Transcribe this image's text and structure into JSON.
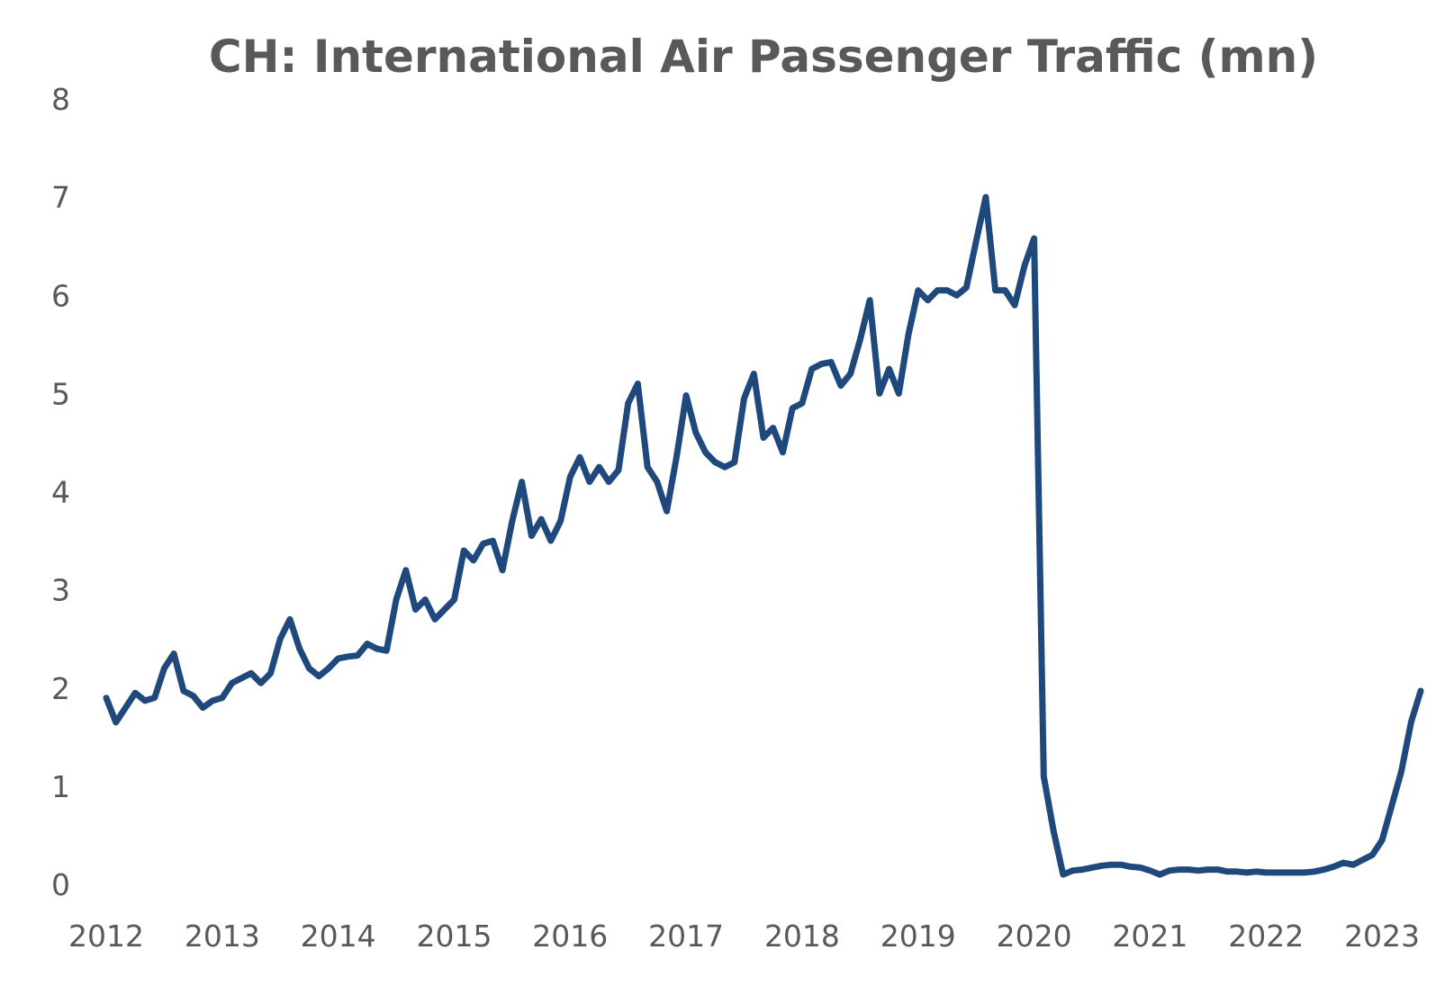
{
  "chart_data": {
    "type": "line",
    "title": "CH: International Air Passenger Traffic (mn)",
    "xlabel": "",
    "ylabel": "",
    "xlim": [
      "2012-01",
      "2023-05"
    ],
    "ylim": [
      0,
      8
    ],
    "y_ticks": [
      "0",
      "1",
      "2",
      "3",
      "4",
      "5",
      "6",
      "7",
      "8"
    ],
    "x_ticks": [
      "2012",
      "2013",
      "2014",
      "2015",
      "2016",
      "2017",
      "2018",
      "2019",
      "2020",
      "2021",
      "2022",
      "2023"
    ],
    "grid": false,
    "legend": "none",
    "line_color": "#1f497d",
    "series": [
      {
        "values": [
          [
            "2012-01",
            1.9
          ],
          [
            "2012-02",
            1.65
          ],
          [
            "2012-03",
            1.8
          ],
          [
            "2012-04",
            1.95
          ],
          [
            "2012-05",
            1.87
          ],
          [
            "2012-06",
            1.9
          ],
          [
            "2012-07",
            2.2
          ],
          [
            "2012-08",
            2.35
          ],
          [
            "2012-09",
            1.97
          ],
          [
            "2012-10",
            1.92
          ],
          [
            "2012-11",
            1.8
          ],
          [
            "2012-12",
            1.87
          ],
          [
            "2013-01",
            1.9
          ],
          [
            "2013-02",
            2.05
          ],
          [
            "2013-03",
            2.1
          ],
          [
            "2013-04",
            2.15
          ],
          [
            "2013-05",
            2.05
          ],
          [
            "2013-06",
            2.15
          ],
          [
            "2013-07",
            2.5
          ],
          [
            "2013-08",
            2.7
          ],
          [
            "2013-09",
            2.4
          ],
          [
            "2013-10",
            2.2
          ],
          [
            "2013-11",
            2.12
          ],
          [
            "2013-12",
            2.2
          ],
          [
            "2014-01",
            2.3
          ],
          [
            "2014-02",
            2.32
          ],
          [
            "2014-03",
            2.33
          ],
          [
            "2014-04",
            2.45
          ],
          [
            "2014-05",
            2.4
          ],
          [
            "2014-06",
            2.38
          ],
          [
            "2014-07",
            2.9
          ],
          [
            "2014-08",
            3.2
          ],
          [
            "2014-09",
            2.8
          ],
          [
            "2014-10",
            2.9
          ],
          [
            "2014-11",
            2.7
          ],
          [
            "2014-12",
            2.8
          ],
          [
            "2015-01",
            2.9
          ],
          [
            "2015-02",
            3.4
          ],
          [
            "2015-03",
            3.3
          ],
          [
            "2015-04",
            3.47
          ],
          [
            "2015-05",
            3.5
          ],
          [
            "2015-06",
            3.2
          ],
          [
            "2015-07",
            3.7
          ],
          [
            "2015-08",
            4.1
          ],
          [
            "2015-09",
            3.55
          ],
          [
            "2015-10",
            3.72
          ],
          [
            "2015-11",
            3.5
          ],
          [
            "2015-12",
            3.7
          ],
          [
            "2016-01",
            4.15
          ],
          [
            "2016-02",
            4.35
          ],
          [
            "2016-03",
            4.1
          ],
          [
            "2016-04",
            4.25
          ],
          [
            "2016-05",
            4.1
          ],
          [
            "2016-06",
            4.22
          ],
          [
            "2016-07",
            4.9
          ],
          [
            "2016-08",
            5.1
          ],
          [
            "2016-09",
            4.25
          ],
          [
            "2016-10",
            4.1
          ],
          [
            "2016-11",
            3.8
          ],
          [
            "2016-12",
            4.35
          ],
          [
            "2017-01",
            4.98
          ],
          [
            "2017-02",
            4.6
          ],
          [
            "2017-03",
            4.4
          ],
          [
            "2017-04",
            4.3
          ],
          [
            "2017-05",
            4.25
          ],
          [
            "2017-06",
            4.3
          ],
          [
            "2017-07",
            4.95
          ],
          [
            "2017-08",
            5.2
          ],
          [
            "2017-09",
            4.55
          ],
          [
            "2017-10",
            4.65
          ],
          [
            "2017-11",
            4.4
          ],
          [
            "2017-12",
            4.85
          ],
          [
            "2018-01",
            4.9
          ],
          [
            "2018-02",
            5.25
          ],
          [
            "2018-03",
            5.3
          ],
          [
            "2018-04",
            5.32
          ],
          [
            "2018-05",
            5.08
          ],
          [
            "2018-06",
            5.2
          ],
          [
            "2018-07",
            5.55
          ],
          [
            "2018-08",
            5.95
          ],
          [
            "2018-09",
            5.0
          ],
          [
            "2018-10",
            5.25
          ],
          [
            "2018-11",
            5.0
          ],
          [
            "2018-12",
            5.6
          ],
          [
            "2019-01",
            6.05
          ],
          [
            "2019-02",
            5.95
          ],
          [
            "2019-03",
            6.05
          ],
          [
            "2019-04",
            6.05
          ],
          [
            "2019-05",
            6.0
          ],
          [
            "2019-06",
            6.08
          ],
          [
            "2019-07",
            6.55
          ],
          [
            "2019-08",
            7.0
          ],
          [
            "2019-09",
            6.05
          ],
          [
            "2019-10",
            6.05
          ],
          [
            "2019-11",
            5.9
          ],
          [
            "2019-12",
            6.3
          ],
          [
            "2020-01",
            6.58
          ],
          [
            "2020-02",
            1.1
          ],
          [
            "2020-03",
            0.55
          ],
          [
            "2020-04",
            0.1
          ],
          [
            "2020-05",
            0.14
          ],
          [
            "2020-06",
            0.15
          ],
          [
            "2020-07",
            0.17
          ],
          [
            "2020-08",
            0.19
          ],
          [
            "2020-09",
            0.2
          ],
          [
            "2020-10",
            0.2
          ],
          [
            "2020-11",
            0.18
          ],
          [
            "2020-12",
            0.17
          ],
          [
            "2021-01",
            0.14
          ],
          [
            "2021-02",
            0.1
          ],
          [
            "2021-03",
            0.14
          ],
          [
            "2021-04",
            0.15
          ],
          [
            "2021-05",
            0.15
          ],
          [
            "2021-06",
            0.14
          ],
          [
            "2021-07",
            0.15
          ],
          [
            "2021-08",
            0.15
          ],
          [
            "2021-09",
            0.13
          ],
          [
            "2021-10",
            0.13
          ],
          [
            "2021-11",
            0.12
          ],
          [
            "2021-12",
            0.13
          ],
          [
            "2022-01",
            0.12
          ],
          [
            "2022-02",
            0.12
          ],
          [
            "2022-03",
            0.12
          ],
          [
            "2022-04",
            0.12
          ],
          [
            "2022-05",
            0.12
          ],
          [
            "2022-06",
            0.13
          ],
          [
            "2022-07",
            0.15
          ],
          [
            "2022-08",
            0.18
          ],
          [
            "2022-09",
            0.22
          ],
          [
            "2022-10",
            0.2
          ],
          [
            "2022-11",
            0.25
          ],
          [
            "2022-12",
            0.3
          ],
          [
            "2023-01",
            0.45
          ],
          [
            "2023-02",
            0.8
          ],
          [
            "2023-03",
            1.15
          ],
          [
            "2023-04",
            1.65
          ],
          [
            "2023-05",
            1.97
          ]
        ]
      }
    ]
  }
}
